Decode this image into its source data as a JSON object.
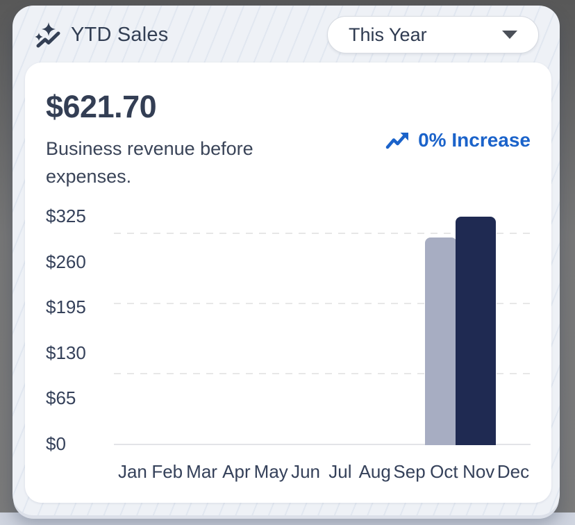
{
  "header": {
    "icon": "sparkles-trend-icon",
    "title": "YTD Sales",
    "period_selector": {
      "value": "This Year",
      "icon": "chevron-down-icon"
    }
  },
  "summary": {
    "total": "$621.70",
    "description": "Business revenue before expenses.",
    "change": {
      "label": "0% Increase",
      "icon": "trend-up-arrow-icon",
      "color": "#1b63ca"
    }
  },
  "chart_data": {
    "type": "bar",
    "categories": [
      "Jan",
      "Feb",
      "Mar",
      "Apr",
      "May",
      "Jun",
      "Jul",
      "Aug",
      "Sep",
      "Oct",
      "Nov",
      "Dec"
    ],
    "values": [
      0,
      0,
      0,
      0,
      0,
      0,
      0,
      0,
      0,
      295.85,
      325.85,
      0
    ],
    "bar_colors": {
      "Oct": "#a7adc2",
      "Nov": "#1f2a52"
    },
    "default_bar_color": "#a7adc2",
    "y_ticks": [
      "$0",
      "$65",
      "$130",
      "$195",
      "$260",
      "$325"
    ],
    "ylim": [
      0,
      325
    ],
    "xlabel": "",
    "ylabel": "",
    "legend": "none",
    "grid": "horizontal-dashed"
  }
}
